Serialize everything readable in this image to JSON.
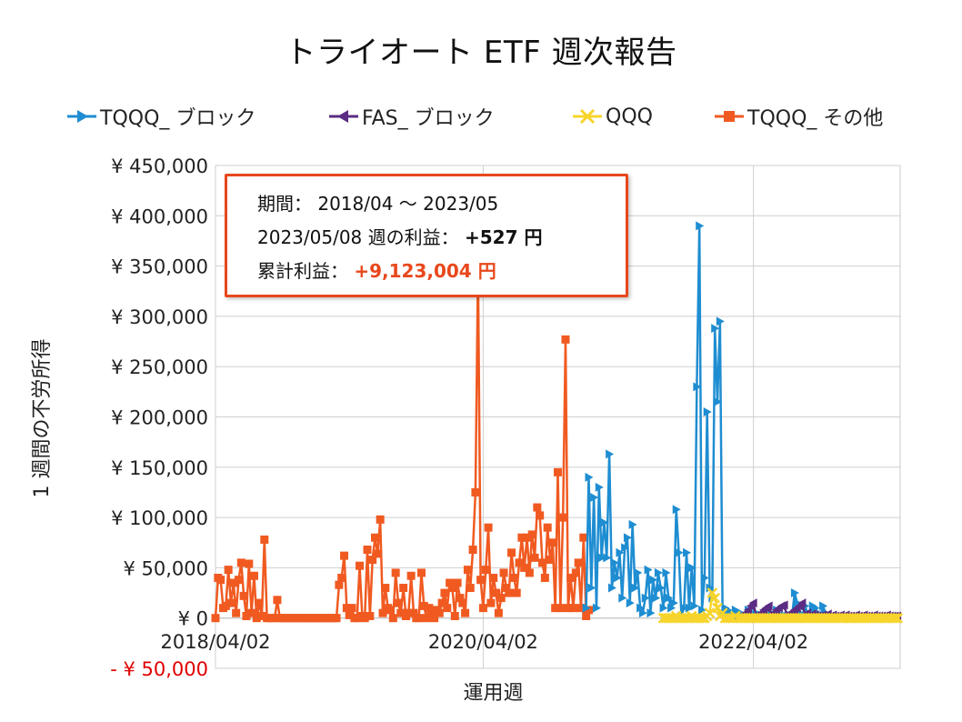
{
  "title": "トライオート ETF 週次報告",
  "legend": [
    {
      "key": "tqqq_block",
      "label": "TQQQ_ ブロック",
      "color": "#1f8dd1",
      "marker": "triangle-right"
    },
    {
      "key": "fas_block",
      "label": "FAS_ ブロック",
      "color": "#5b2c83",
      "marker": "triangle-left"
    },
    {
      "key": "qqq",
      "label": "QQQ",
      "color": "#f6d42b",
      "marker": "star"
    },
    {
      "key": "tqqq_other",
      "label": "TQQQ_ その他",
      "color": "#f05a21",
      "marker": "square"
    }
  ],
  "info_box": {
    "period_label": "期間：",
    "period_value": "2018/04 ～ 2023/05",
    "week_label": "2023/05/08 週の利益：",
    "week_value": "+527 円",
    "total_label": "累計利益：",
    "total_value": "+9,123,004 円"
  },
  "chart_data": {
    "type": "line",
    "title": "トライオート ETF 週次報告",
    "xlabel": "運用週",
    "ylabel": "1 週間の不労所得",
    "ylim": [
      -50000,
      450000
    ],
    "y_ticks": [
      450000,
      400000,
      350000,
      300000,
      250000,
      200000,
      150000,
      100000,
      50000,
      0,
      -50000
    ],
    "y_tick_labels": [
      "¥ 450,000",
      "¥ 400,000",
      "¥ 350,000",
      "¥ 300,000",
      "¥ 250,000",
      "¥ 200,000",
      "¥ 150,000",
      "¥ 100,000",
      "¥ 50,000",
      "¥ 0",
      "- ¥ 50,000"
    ],
    "x_tick_labels": [
      {
        "date": "2018/04/02",
        "week": 0
      },
      {
        "date": "2020/04/02",
        "week": 104
      },
      {
        "date": "2022/04/02",
        "week": 209
      }
    ],
    "x_range_weeks": [
      0,
      266
    ],
    "grid": true,
    "legend_position": "top",
    "series": [
      {
        "name": "TQQQ_ その他",
        "key": "tqqq_other",
        "x_start": 0,
        "values": [
          0,
          40000,
          38000,
          10000,
          12000,
          48000,
          15000,
          35000,
          5000,
          38000,
          55000,
          22000,
          2000,
          54000,
          5000,
          42000,
          0,
          15000,
          2000,
          78000,
          0,
          0,
          0,
          0,
          18000,
          0,
          0,
          0,
          0,
          0,
          0,
          0,
          0,
          0,
          0,
          0,
          0,
          0,
          0,
          0,
          0,
          0,
          0,
          0,
          0,
          0,
          0,
          0,
          33000,
          40000,
          62000,
          10000,
          3000,
          10000,
          0,
          0,
          52000,
          2000,
          0,
          68000,
          2000,
          58000,
          80000,
          64000,
          98000,
          5000,
          30000,
          10000,
          8000,
          0,
          45000,
          15000,
          5000,
          30000,
          2000,
          5000,
          42000,
          5000,
          0,
          0,
          45000,
          12000,
          0,
          10000,
          2000,
          0,
          8000,
          5000,
          15000,
          25000,
          10000,
          35000,
          30000,
          2000,
          35000,
          20000,
          15000,
          5000,
          48000,
          30000,
          68000,
          125000,
          350000,
          38000,
          10000,
          48000,
          90000,
          15000,
          40000,
          25000,
          5000,
          20000,
          45000,
          30000,
          25000,
          65000,
          40000,
          25000,
          55000,
          80000,
          50000,
          80000,
          45000,
          83000,
          60000,
          110000,
          102000,
          55000,
          40000,
          90000,
          58000,
          75000,
          10000,
          145000,
          10000,
          100000,
          277000,
          10000,
          40000,
          10000,
          45000,
          55000,
          10000,
          80000,
          2000,
          8000
        ],
        "color": "#f05a21"
      },
      {
        "name": "TQQQ_ ブロック",
        "key": "tqqq_block",
        "x_start": 144,
        "values": [
          10000,
          140000,
          30000,
          120000,
          10000,
          130000,
          60000,
          95000,
          60000,
          163000,
          30000,
          55000,
          40000,
          65000,
          20000,
          70000,
          80000,
          15000,
          93000,
          30000,
          45000,
          10000,
          5000,
          20000,
          48000,
          5000,
          38000,
          20000,
          45000,
          30000,
          10000,
          45000,
          20000,
          10000,
          15000,
          108000,
          65000,
          2000,
          10000,
          65000,
          10000,
          50000,
          12000,
          230000,
          390000,
          8000,
          40000,
          205000,
          30000,
          20000,
          288000,
          215000,
          295000,
          5000,
          10000,
          8000,
          5000,
          3000,
          8000,
          2000,
          5000,
          3000,
          2000,
          8000,
          5000,
          2000,
          5000,
          2000,
          3000,
          2000,
          2000,
          3000,
          5000,
          2000,
          8000,
          2000,
          3000,
          2000,
          2000,
          3000,
          2000,
          25000,
          15000,
          5000,
          2000,
          12000,
          5000,
          2000,
          12000,
          10000,
          5000,
          2000,
          12000,
          5000,
          2000
        ],
        "color": "#1f8dd1"
      },
      {
        "name": "FAS_ ブロック",
        "key": "fas_block",
        "x_start": 204,
        "values": [
          0,
          2000,
          5000,
          8000,
          12000,
          15000,
          2000,
          3000,
          5000,
          8000,
          10000,
          12000,
          3000,
          5000,
          8000,
          10000,
          12000,
          13000,
          2000,
          4000,
          6000,
          8000,
          10000,
          12000,
          15000,
          3000,
          5000,
          2000,
          4000,
          3000,
          2000,
          2000,
          3000,
          2000,
          4000,
          2000,
          3000,
          2000,
          2000,
          3000,
          2000,
          3000,
          2000,
          2000,
          2000,
          3000,
          2000,
          2000,
          3000,
          2000,
          2000,
          2000,
          3000,
          2000,
          2000,
          2000,
          2000,
          3000,
          2000,
          2000,
          2000,
          2000
        ],
        "color": "#5b2c83"
      },
      {
        "name": "QQQ",
        "key": "qqq",
        "x_start": 174,
        "values": [
          0,
          0,
          0,
          0,
          0,
          2000,
          0,
          0,
          0,
          0,
          0,
          2000,
          0,
          0,
          0,
          0,
          0,
          2000,
          5000,
          25000,
          20000,
          10000,
          2000,
          5000,
          0,
          0,
          0,
          0,
          2000,
          0,
          0,
          0,
          0,
          0,
          0,
          0,
          0,
          0,
          0,
          0,
          0,
          0,
          0,
          0,
          0,
          0,
          0,
          0,
          0,
          0,
          0,
          0,
          0,
          0,
          0,
          0,
          0,
          0,
          0,
          0,
          0,
          0,
          0,
          0,
          0,
          0,
          0,
          0,
          0,
          0,
          0,
          0,
          0,
          0,
          0,
          0,
          0,
          0,
          0,
          0,
          0,
          0,
          0,
          0,
          0,
          0,
          0,
          0,
          0,
          0,
          0,
          0
        ],
        "color": "#f6d42b"
      }
    ]
  }
}
